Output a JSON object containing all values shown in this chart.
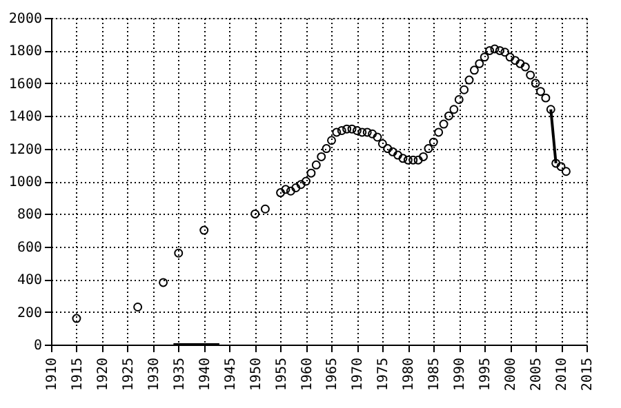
{
  "chart_data": {
    "type": "scatter",
    "grid": true,
    "xlim": [
      1910,
      2015
    ],
    "xticks": [
      1910,
      1915,
      1920,
      1925,
      1930,
      1935,
      1940,
      1945,
      1950,
      1955,
      1960,
      1965,
      1970,
      1975,
      1980,
      1985,
      1990,
      1995,
      2000,
      2005,
      2010,
      2015
    ],
    "ylim": [
      0,
      2000
    ],
    "yticks": [
      0,
      200,
      400,
      600,
      800,
      1000,
      1200,
      1400,
      1600,
      1800,
      2000
    ],
    "series": [
      {
        "color": "#000000",
        "marker": "circle",
        "x": [
          1915,
          1927,
          1932,
          1935,
          1940,
          1950,
          1952,
          1955,
          1956,
          1957,
          1958,
          1959,
          1960,
          1961,
          1962,
          1963,
          1964,
          1965,
          1966,
          1967,
          1968,
          1969,
          1970,
          1971,
          1972,
          1973,
          1974,
          1975,
          1976,
          1977,
          1978,
          1979,
          1980,
          1981,
          1982,
          1983,
          1984,
          1985,
          1986,
          1987,
          1988,
          1989,
          1990,
          1991,
          1992,
          1993,
          1994,
          1995,
          1996,
          1997,
          1998,
          1999,
          2000,
          2001,
          2002,
          2003,
          2004,
          2005,
          2006,
          2007,
          2008,
          2009,
          2010,
          2011
        ],
        "values": [
          160,
          230,
          380,
          560,
          700,
          800,
          830,
          930,
          950,
          940,
          960,
          980,
          1000,
          1050,
          1100,
          1150,
          1200,
          1250,
          1300,
          1310,
          1320,
          1320,
          1310,
          1300,
          1300,
          1290,
          1270,
          1230,
          1200,
          1180,
          1160,
          1140,
          1130,
          1130,
          1130,
          1150,
          1200,
          1240,
          1300,
          1350,
          1400,
          1440,
          1500,
          1560,
          1620,
          1680,
          1720,
          1760,
          1800,
          1810,
          1800,
          1790,
          1760,
          1740,
          1720,
          1700,
          1650,
          1600,
          1550,
          1510,
          1440,
          1110,
          1090,
          1060
        ]
      },
      {
        "type": "line",
        "color": "#000000",
        "x": [
          2008,
          2009
        ],
        "values": [
          1440,
          1110
        ]
      },
      {
        "type": "line",
        "color": "#000000",
        "x": [
          1934,
          1943
        ],
        "values": [
          0,
          0
        ]
      }
    ]
  }
}
